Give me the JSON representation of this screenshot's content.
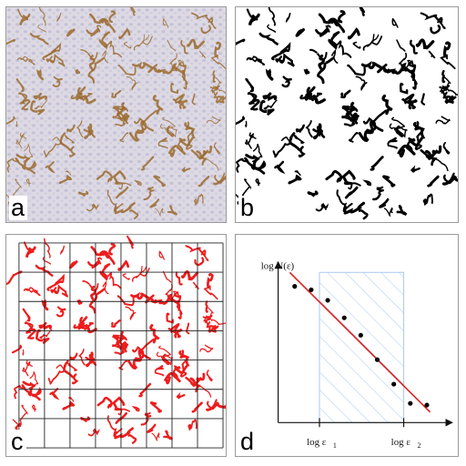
{
  "panels": {
    "a": {
      "label": "a"
    },
    "b": {
      "label": "b"
    },
    "c": {
      "label": "c"
    },
    "d": {
      "label": "d"
    }
  },
  "plot": {
    "ylabel": "log N(ε)",
    "eps1_text": "log ε",
    "eps1_sub": "1",
    "eps2_text": "log ε",
    "eps2_sub": "2",
    "points": [
      [
        0,
        3.9
      ],
      [
        1,
        3.8
      ],
      [
        2,
        3.5
      ],
      [
        3,
        3.0
      ],
      [
        4,
        2.5
      ],
      [
        5,
        1.8
      ],
      [
        6,
        1.1
      ],
      [
        7,
        0.55
      ],
      [
        8,
        0.5
      ]
    ],
    "fit_x": [
      -0.3,
      8.2
    ],
    "fit_y_at_ends": [
      4.3,
      0.3
    ],
    "shaded_range": [
      1.5,
      6.6
    ],
    "colors": {
      "fit": "#e02020",
      "shade": "#a8c8ee",
      "points": "#000000"
    }
  },
  "colors": {
    "tissue": "#dcd8e2",
    "vessel": "#9b6a2e",
    "red": "#ee1c1c",
    "grid": "#222222"
  }
}
